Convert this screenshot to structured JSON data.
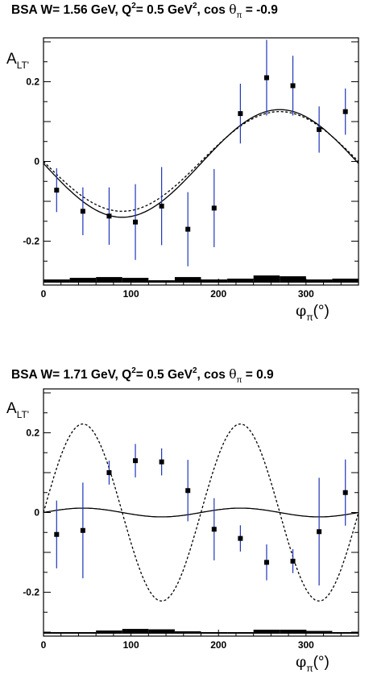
{
  "chart_data": [
    {
      "type": "scatter",
      "title": {
        "a": "BSA W= 1.56 GeV, Q",
        "b": "2",
        "c": "= 0.5 GeV",
        "d": "2",
        "e": ", cos ",
        "f": "θ",
        "g": "π",
        "h": " = -0.9"
      },
      "xlabel": {
        "main": "φ",
        "sub": "π",
        "unit": "(°)"
      },
      "ylabel": {
        "main": "A",
        "sub": "LT'"
      },
      "xlim": [
        0,
        360
      ],
      "ylim": [
        -0.31,
        0.31
      ],
      "x_ticks": [
        0,
        100,
        200,
        300
      ],
      "x_tick_labels": [
        "0",
        "100",
        "200",
        "300"
      ],
      "y_ticks": [
        -0.2,
        0,
        0.2
      ],
      "y_tick_labels": [
        "-0.2",
        "0",
        "0.2"
      ],
      "points": [
        {
          "x": 15,
          "y": -0.072,
          "err": 0.055
        },
        {
          "x": 45,
          "y": -0.125,
          "err": 0.06
        },
        {
          "x": 75,
          "y": -0.137,
          "err": 0.072
        },
        {
          "x": 105,
          "y": -0.152,
          "err": 0.095
        },
        {
          "x": 135,
          "y": -0.112,
          "err": 0.098
        },
        {
          "x": 165,
          "y": -0.17,
          "err": 0.093
        },
        {
          "x": 195,
          "y": -0.117,
          "err": 0.098
        },
        {
          "x": 225,
          "y": 0.12,
          "err": 0.075
        },
        {
          "x": 255,
          "y": 0.21,
          "err": 0.095
        },
        {
          "x": 285,
          "y": 0.19,
          "err": 0.075
        },
        {
          "x": 315,
          "y": 0.08,
          "err": 0.058
        },
        {
          "x": 345,
          "y": 0.125,
          "err": 0.058
        }
      ],
      "curves": [
        {
          "style": "solid",
          "a0": -0.005,
          "a1": -0.135,
          "b1": 0.0
        },
        {
          "style": "dashed",
          "a0": 0.0,
          "a1": -0.125,
          "b1": 0.0
        }
      ],
      "sys_band": [
        {
          "x0": 0,
          "x1": 30,
          "h": 0.008
        },
        {
          "x0": 30,
          "x1": 60,
          "h": 0.012
        },
        {
          "x0": 60,
          "x1": 90,
          "h": 0.014
        },
        {
          "x0": 90,
          "x1": 120,
          "h": 0.012
        },
        {
          "x0": 120,
          "x1": 150,
          "h": 0.006
        },
        {
          "x0": 150,
          "x1": 180,
          "h": 0.014
        },
        {
          "x0": 180,
          "x1": 210,
          "h": 0.008
        },
        {
          "x0": 210,
          "x1": 240,
          "h": 0.01
        },
        {
          "x0": 240,
          "x1": 270,
          "h": 0.018
        },
        {
          "x0": 270,
          "x1": 300,
          "h": 0.016
        },
        {
          "x0": 300,
          "x1": 330,
          "h": 0.008
        },
        {
          "x0": 330,
          "x1": 360,
          "h": 0.01
        }
      ]
    },
    {
      "type": "scatter",
      "title": {
        "a": "BSA W= 1.71 GeV, Q",
        "b": "2",
        "c": "= 0.5 GeV",
        "d": "2",
        "e": ", cos ",
        "f": "θ",
        "g": "π",
        "h": " = 0.9"
      },
      "xlabel": {
        "main": "φ",
        "sub": "π",
        "unit": "(°)"
      },
      "ylabel": {
        "main": "A",
        "sub": "LT'"
      },
      "xlim": [
        0,
        360
      ],
      "ylim": [
        -0.31,
        0.31
      ],
      "x_ticks": [
        0,
        100,
        200,
        300
      ],
      "x_tick_labels": [
        "0",
        "100",
        "200",
        "300"
      ],
      "y_ticks": [
        -0.2,
        0,
        0.2
      ],
      "y_tick_labels": [
        "-0.2",
        "0",
        "0.2"
      ],
      "points": [
        {
          "x": 15,
          "y": -0.055,
          "err": 0.085
        },
        {
          "x": 45,
          "y": -0.045,
          "err": 0.12
        },
        {
          "x": 75,
          "y": 0.1,
          "err": 0.03
        },
        {
          "x": 105,
          "y": 0.13,
          "err": 0.042
        },
        {
          "x": 135,
          "y": 0.127,
          "err": 0.034
        },
        {
          "x": 165,
          "y": 0.055,
          "err": 0.077
        },
        {
          "x": 195,
          "y": -0.042,
          "err": 0.078
        },
        {
          "x": 225,
          "y": -0.065,
          "err": 0.033
        },
        {
          "x": 255,
          "y": -0.125,
          "err": 0.045
        },
        {
          "x": 285,
          "y": -0.122,
          "err": 0.03
        },
        {
          "x": 315,
          "y": -0.048,
          "err": 0.135
        },
        {
          "x": 345,
          "y": 0.05,
          "err": 0.083
        }
      ],
      "curves": [
        {
          "style": "solid",
          "a0": 0.0,
          "a1": 0.0,
          "b1": 0.011
        },
        {
          "style": "dashed",
          "a0": 0.0,
          "a1": 0.0,
          "b1": 0.222
        }
      ],
      "sys_band": [
        {
          "x0": 0,
          "x1": 60,
          "h": 0.004
        },
        {
          "x0": 60,
          "x1": 90,
          "h": 0.008
        },
        {
          "x0": 90,
          "x1": 120,
          "h": 0.012
        },
        {
          "x0": 120,
          "x1": 150,
          "h": 0.011
        },
        {
          "x0": 150,
          "x1": 180,
          "h": 0.006
        },
        {
          "x0": 180,
          "x1": 210,
          "h": 0.004
        },
        {
          "x0": 210,
          "x1": 240,
          "h": 0.004
        },
        {
          "x0": 240,
          "x1": 270,
          "h": 0.01
        },
        {
          "x0": 270,
          "x1": 300,
          "h": 0.01
        },
        {
          "x0": 300,
          "x1": 330,
          "h": 0.007
        },
        {
          "x0": 330,
          "x1": 360,
          "h": 0.004
        }
      ]
    }
  ]
}
